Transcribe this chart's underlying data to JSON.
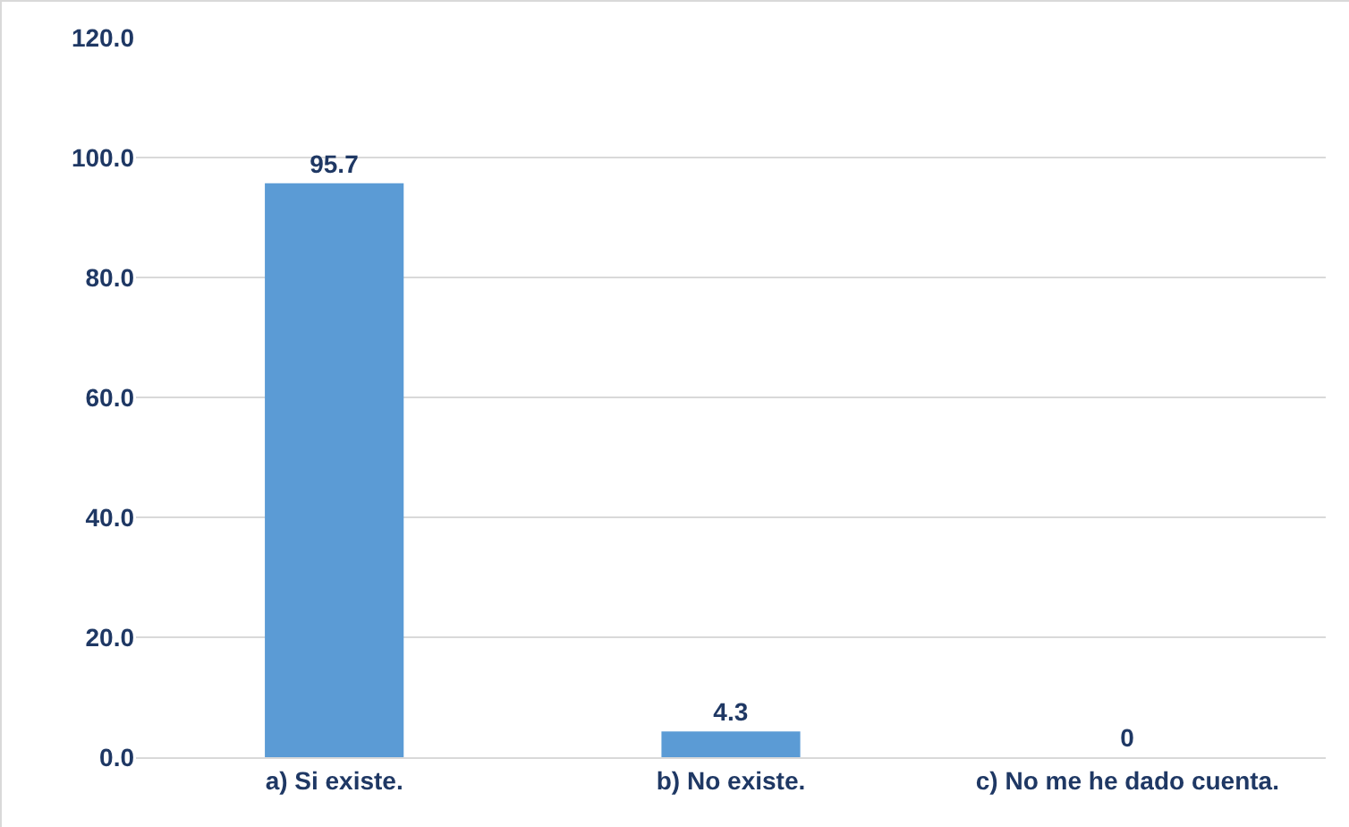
{
  "chart_data": {
    "type": "bar",
    "categories": [
      "a) Si existe.",
      "b) No existe.",
      "c) No me he dado cuenta."
    ],
    "values": [
      95.7,
      4.3,
      0
    ],
    "color": "#5b9bd5",
    "data_labels": true,
    "grid": "y",
    "ylim": [
      0,
      120
    ],
    "yticks": [
      {
        "value": 0,
        "label": "0.0"
      },
      {
        "value": 20,
        "label": "20.0"
      },
      {
        "value": 40,
        "label": "40.0"
      },
      {
        "value": 60,
        "label": "60.0"
      },
      {
        "value": 80,
        "label": "80.0"
      },
      {
        "value": 100,
        "label": "100.0"
      },
      {
        "value": 120,
        "label": "120.0"
      }
    ]
  }
}
